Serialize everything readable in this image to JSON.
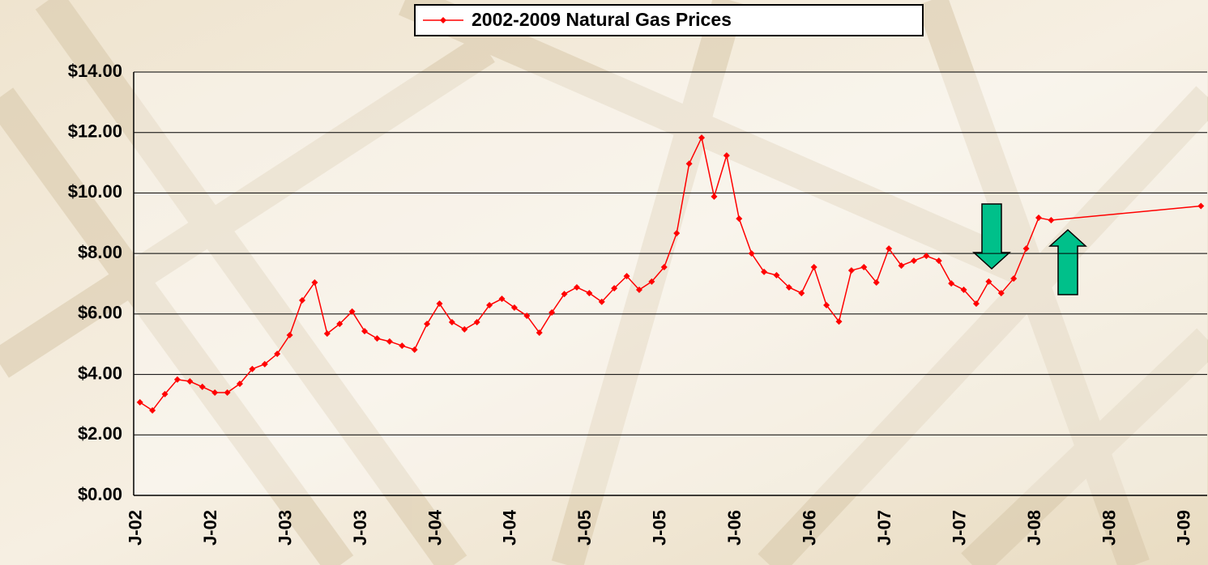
{
  "chart_data": {
    "type": "line",
    "categories": [
      "J-02",
      null,
      null,
      null,
      null,
      null,
      "J-02",
      null,
      null,
      null,
      null,
      null,
      "J-03",
      null,
      null,
      null,
      null,
      null,
      "J-03",
      null,
      null,
      null,
      null,
      null,
      "J-04",
      null,
      null,
      null,
      null,
      null,
      "J-04",
      null,
      null,
      null,
      null,
      null,
      "J-05",
      null,
      null,
      null,
      null,
      null,
      "J-05",
      null,
      null,
      null,
      null,
      null,
      "J-06",
      null,
      null,
      null,
      null,
      null,
      "J-06",
      null,
      null,
      null,
      null,
      null,
      "J-07",
      null,
      null,
      null,
      null,
      null,
      "J-07",
      null,
      null,
      null,
      null,
      null,
      "J-08",
      null,
      null,
      null,
      null,
      null,
      "J-08",
      null,
      null,
      null,
      null,
      null,
      "J-09",
      null
    ],
    "series": [
      {
        "name": "2002-2009 Natural Gas Prices",
        "color": "#ff0000",
        "values": [
          3.08,
          2.81,
          3.35,
          3.83,
          3.77,
          3.59,
          3.4,
          3.4,
          3.69,
          4.18,
          4.34,
          4.68,
          5.3,
          6.45,
          7.04,
          5.35,
          5.67,
          6.08,
          5.43,
          5.19,
          5.09,
          4.95,
          4.82,
          5.67,
          6.34,
          5.73,
          5.49,
          5.73,
          6.29,
          6.5,
          6.21,
          5.94,
          5.38,
          6.05,
          6.66,
          6.88,
          6.69,
          6.4,
          6.85,
          7.25,
          6.8,
          7.07,
          7.55,
          8.67,
          10.97,
          11.83,
          9.88,
          11.24,
          9.15,
          8.0,
          7.39,
          7.28,
          6.88,
          6.69,
          7.55,
          6.29,
          5.75,
          7.44,
          7.55,
          7.04,
          8.16,
          7.6,
          7.76,
          7.92,
          7.76,
          7.01,
          6.8,
          6.34,
          7.07,
          6.69,
          7.17,
          8.16,
          9.18,
          9.1,
          null,
          null,
          null,
          null,
          null,
          null,
          null,
          null,
          null,
          null,
          null,
          9.57
        ]
      }
    ],
    "ylim": [
      0,
      14
    ],
    "yticks": [
      {
        "value": 0,
        "label": "$0.00"
      },
      {
        "value": 2,
        "label": "$2.00"
      },
      {
        "value": 4,
        "label": "$4.00"
      },
      {
        "value": 6,
        "label": "$6.00"
      },
      {
        "value": 8,
        "label": "$8.00"
      },
      {
        "value": 10,
        "label": "$10.00"
      },
      {
        "value": 12,
        "label": "$12.00"
      },
      {
        "value": 14,
        "label": "$14.00"
      }
    ],
    "grid": true,
    "connect_gaps": true,
    "legend": "top"
  }
}
